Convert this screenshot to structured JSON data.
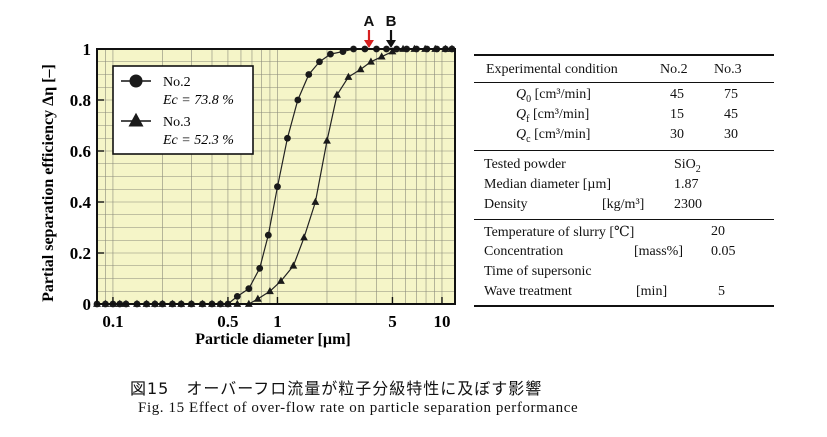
{
  "chart_data": {
    "type": "line",
    "x_scale": "log",
    "xlim": [
      0.08,
      12
    ],
    "ylim": [
      0,
      1
    ],
    "xlabel": "Particle diameter [µm]",
    "ylabel": "Partial separation efficiency Δη [–]",
    "xticks": [
      {
        "value": 0.1,
        "label": "0.1"
      },
      {
        "value": 0.5,
        "label": "0.5"
      },
      {
        "value": 1,
        "label": "1"
      },
      {
        "value": 5,
        "label": "5"
      },
      {
        "value": 10,
        "label": "10"
      }
    ],
    "yticks": [
      {
        "value": 0,
        "label": "0"
      },
      {
        "value": 0.2,
        "label": "0.2"
      },
      {
        "value": 0.4,
        "label": "0.4"
      },
      {
        "value": 0.6,
        "label": "0.6"
      },
      {
        "value": 0.8,
        "label": "0.8"
      },
      {
        "value": 1,
        "label": "1"
      }
    ],
    "grid": true,
    "background": "#f5f5c8",
    "legend_position": "top-left",
    "series": [
      {
        "name": "No.2",
        "sub_label": "Ec = 73.8 %",
        "marker": "circle",
        "color": "#222222",
        "x": [
          0.08,
          0.09,
          0.1,
          0.11,
          0.12,
          0.14,
          0.16,
          0.18,
          0.2,
          0.23,
          0.26,
          0.3,
          0.35,
          0.4,
          0.45,
          0.5,
          0.57,
          0.67,
          0.78,
          0.88,
          1.0,
          1.15,
          1.33,
          1.55,
          1.8,
          2.1,
          2.5,
          2.9,
          3.4,
          4.0,
          4.6,
          5.3,
          6.1,
          7.0,
          8.1,
          9.3,
          10.5,
          11.5
        ],
        "y": [
          0,
          0,
          0,
          0,
          0,
          0,
          0,
          0,
          0,
          0,
          0,
          0,
          0,
          0,
          0,
          0,
          0.03,
          0.06,
          0.14,
          0.27,
          0.46,
          0.65,
          0.8,
          0.9,
          0.95,
          0.98,
          0.99,
          1,
          1,
          1,
          1,
          1,
          1,
          1,
          1,
          1,
          1,
          1
        ]
      },
      {
        "name": "No.3",
        "sub_label": "Ec = 52.3 %",
        "marker": "triangle",
        "color": "#222222",
        "x": [
          0.08,
          0.09,
          0.1,
          0.11,
          0.12,
          0.14,
          0.16,
          0.18,
          0.2,
          0.23,
          0.26,
          0.3,
          0.35,
          0.4,
          0.45,
          0.5,
          0.57,
          0.67,
          0.76,
          0.9,
          1.05,
          1.25,
          1.45,
          1.7,
          2.0,
          2.3,
          2.7,
          3.2,
          3.7,
          4.3,
          5.0,
          5.8,
          6.8,
          7.9,
          9.1,
          10.5,
          11.5
        ],
        "y": [
          0,
          0,
          0,
          0,
          0,
          0,
          0,
          0,
          0,
          0,
          0,
          0,
          0,
          0,
          0,
          0,
          0,
          0,
          0.02,
          0.05,
          0.09,
          0.15,
          0.26,
          0.4,
          0.64,
          0.82,
          0.89,
          0.92,
          0.95,
          0.97,
          0.99,
          1,
          1,
          1,
          1,
          1,
          1
        ]
      }
    ],
    "annotations": [
      {
        "text": "A",
        "x": 3.6,
        "arrow_color": "#d62020"
      },
      {
        "text": "B",
        "x": 4.9,
        "arrow_color": "#111111"
      }
    ]
  },
  "table": {
    "header": {
      "label": "Experimental condition",
      "col1": "No.2",
      "col2": "No.3"
    },
    "rows": [
      {
        "sym": "Q",
        "sub": "0",
        "unit": " [cm³/min]",
        "v1": "45",
        "v2": "75"
      },
      {
        "sym": "Q",
        "sub": "f",
        "unit": " [cm³/min]",
        "v1": "15",
        "v2": "45"
      },
      {
        "sym": "Q",
        "sub": "c",
        "unit": " [cm³/min]",
        "v1": "30",
        "v2": "30"
      }
    ],
    "powder": {
      "tested_label": "Tested powder",
      "tested_value": "SiO",
      "tested_sub": "2",
      "median_label": "Median diameter [µm]",
      "median_value": "1.87",
      "density_label": "Density",
      "density_unit": "[kg/m³]",
      "density_value": "2300"
    },
    "slurry": {
      "temp_label": "Temperature of slurry [℃]",
      "temp_value": "20",
      "conc_label": "Concentration",
      "conc_unit": "[mass%]",
      "conc_value": "0.05",
      "time_label1": "Time of supersonic",
      "time_label2": " Wave treatment",
      "time_unit": "[min]",
      "time_value": "5"
    }
  },
  "caption": {
    "jp": "図15　オーバーフロ流量が粒子分級特性に及ぼす影響",
    "en": "Fig. 15  Effect of over-flow rate on particle separation performance"
  }
}
